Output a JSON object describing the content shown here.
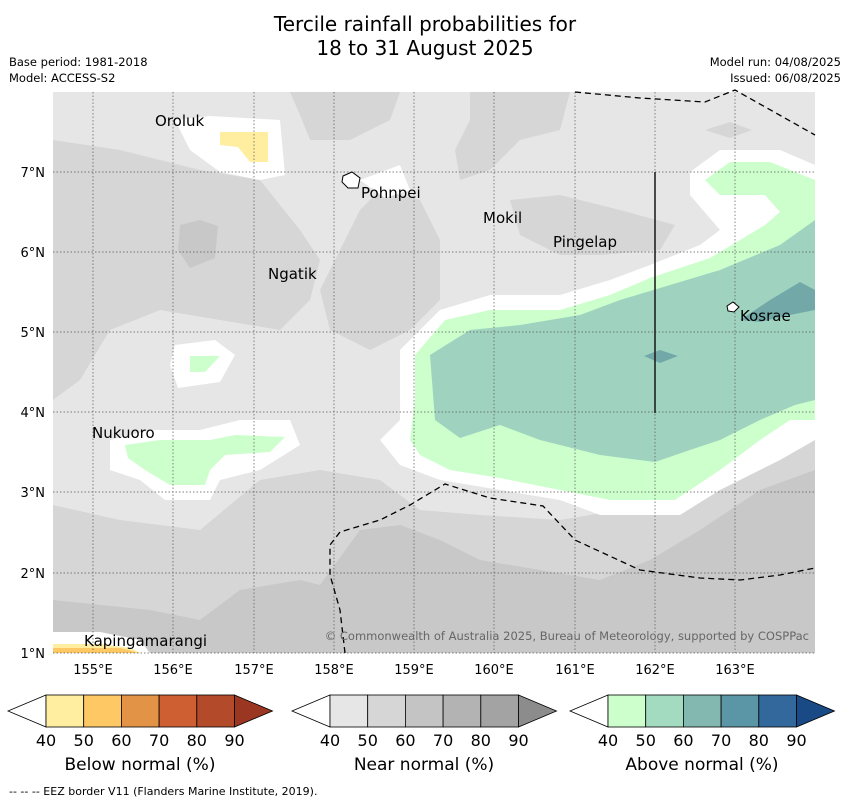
{
  "title": {
    "line1": "Tercile rainfall probabilities for",
    "line2": "18 to 31 August 2025"
  },
  "meta": {
    "base_period": "Base period: 1981-2018",
    "model": "Model: ACCESS-S2",
    "model_run": "Model run: 04/08/2025",
    "issued": "Issued: 06/08/2025"
  },
  "map": {
    "lat_ticks": [
      "7°N",
      "6°N",
      "5°N",
      "4°N",
      "3°N",
      "2°N",
      "1°N"
    ],
    "lon_ticks": [
      "155°E",
      "156°E",
      "157°E",
      "158°E",
      "159°E",
      "160°E",
      "161°E",
      "162°E",
      "163°E"
    ],
    "places": [
      "Oroluk",
      "Pohnpei",
      "Mokil",
      "Pingelap",
      "Ngatik",
      "Kosrae",
      "Nukuoro",
      "Kapingamarangi"
    ],
    "copyright": "© Commonwealth of Australia 2025, Bureau of Meteorology, supported by COSPPac"
  },
  "colorbars": {
    "tick_labels": [
      "40",
      "50",
      "60",
      "70",
      "80",
      "90"
    ],
    "below": {
      "label": "Below normal (%)",
      "colors": [
        "#ffffff",
        "#ffeda0",
        "#fec965",
        "#e29346",
        "#cd5f32",
        "#b34a2a",
        "#9b3622"
      ]
    },
    "near": {
      "label": "Near normal (%)",
      "colors": [
        "#ffffff",
        "#e6e6e6",
        "#d6d6d6",
        "#c4c4c4",
        "#b3b3b3",
        "#a3a3a3",
        "#8c8c8c"
      ]
    },
    "above": {
      "label": "Above normal (%)",
      "colors": [
        "#ffffff",
        "#ccffcc",
        "#a3dbc0",
        "#82b8b0",
        "#5b96a6",
        "#32689c",
        "#1a4a86"
      ]
    }
  },
  "footnote": "--  --  -- EEZ border V11 (Flanders Marine Institute, 2019).",
  "colors": {
    "near_light": "#e6e6e6",
    "near_mid": "#d6d6d6",
    "near_dark": "#c8c8c8",
    "above_green": "#ccffcc",
    "above_teal": "#9fd3bf",
    "above_dark": "#72a9a8",
    "below_yellow": "#ffeda0",
    "below_orange": "#fec965"
  }
}
